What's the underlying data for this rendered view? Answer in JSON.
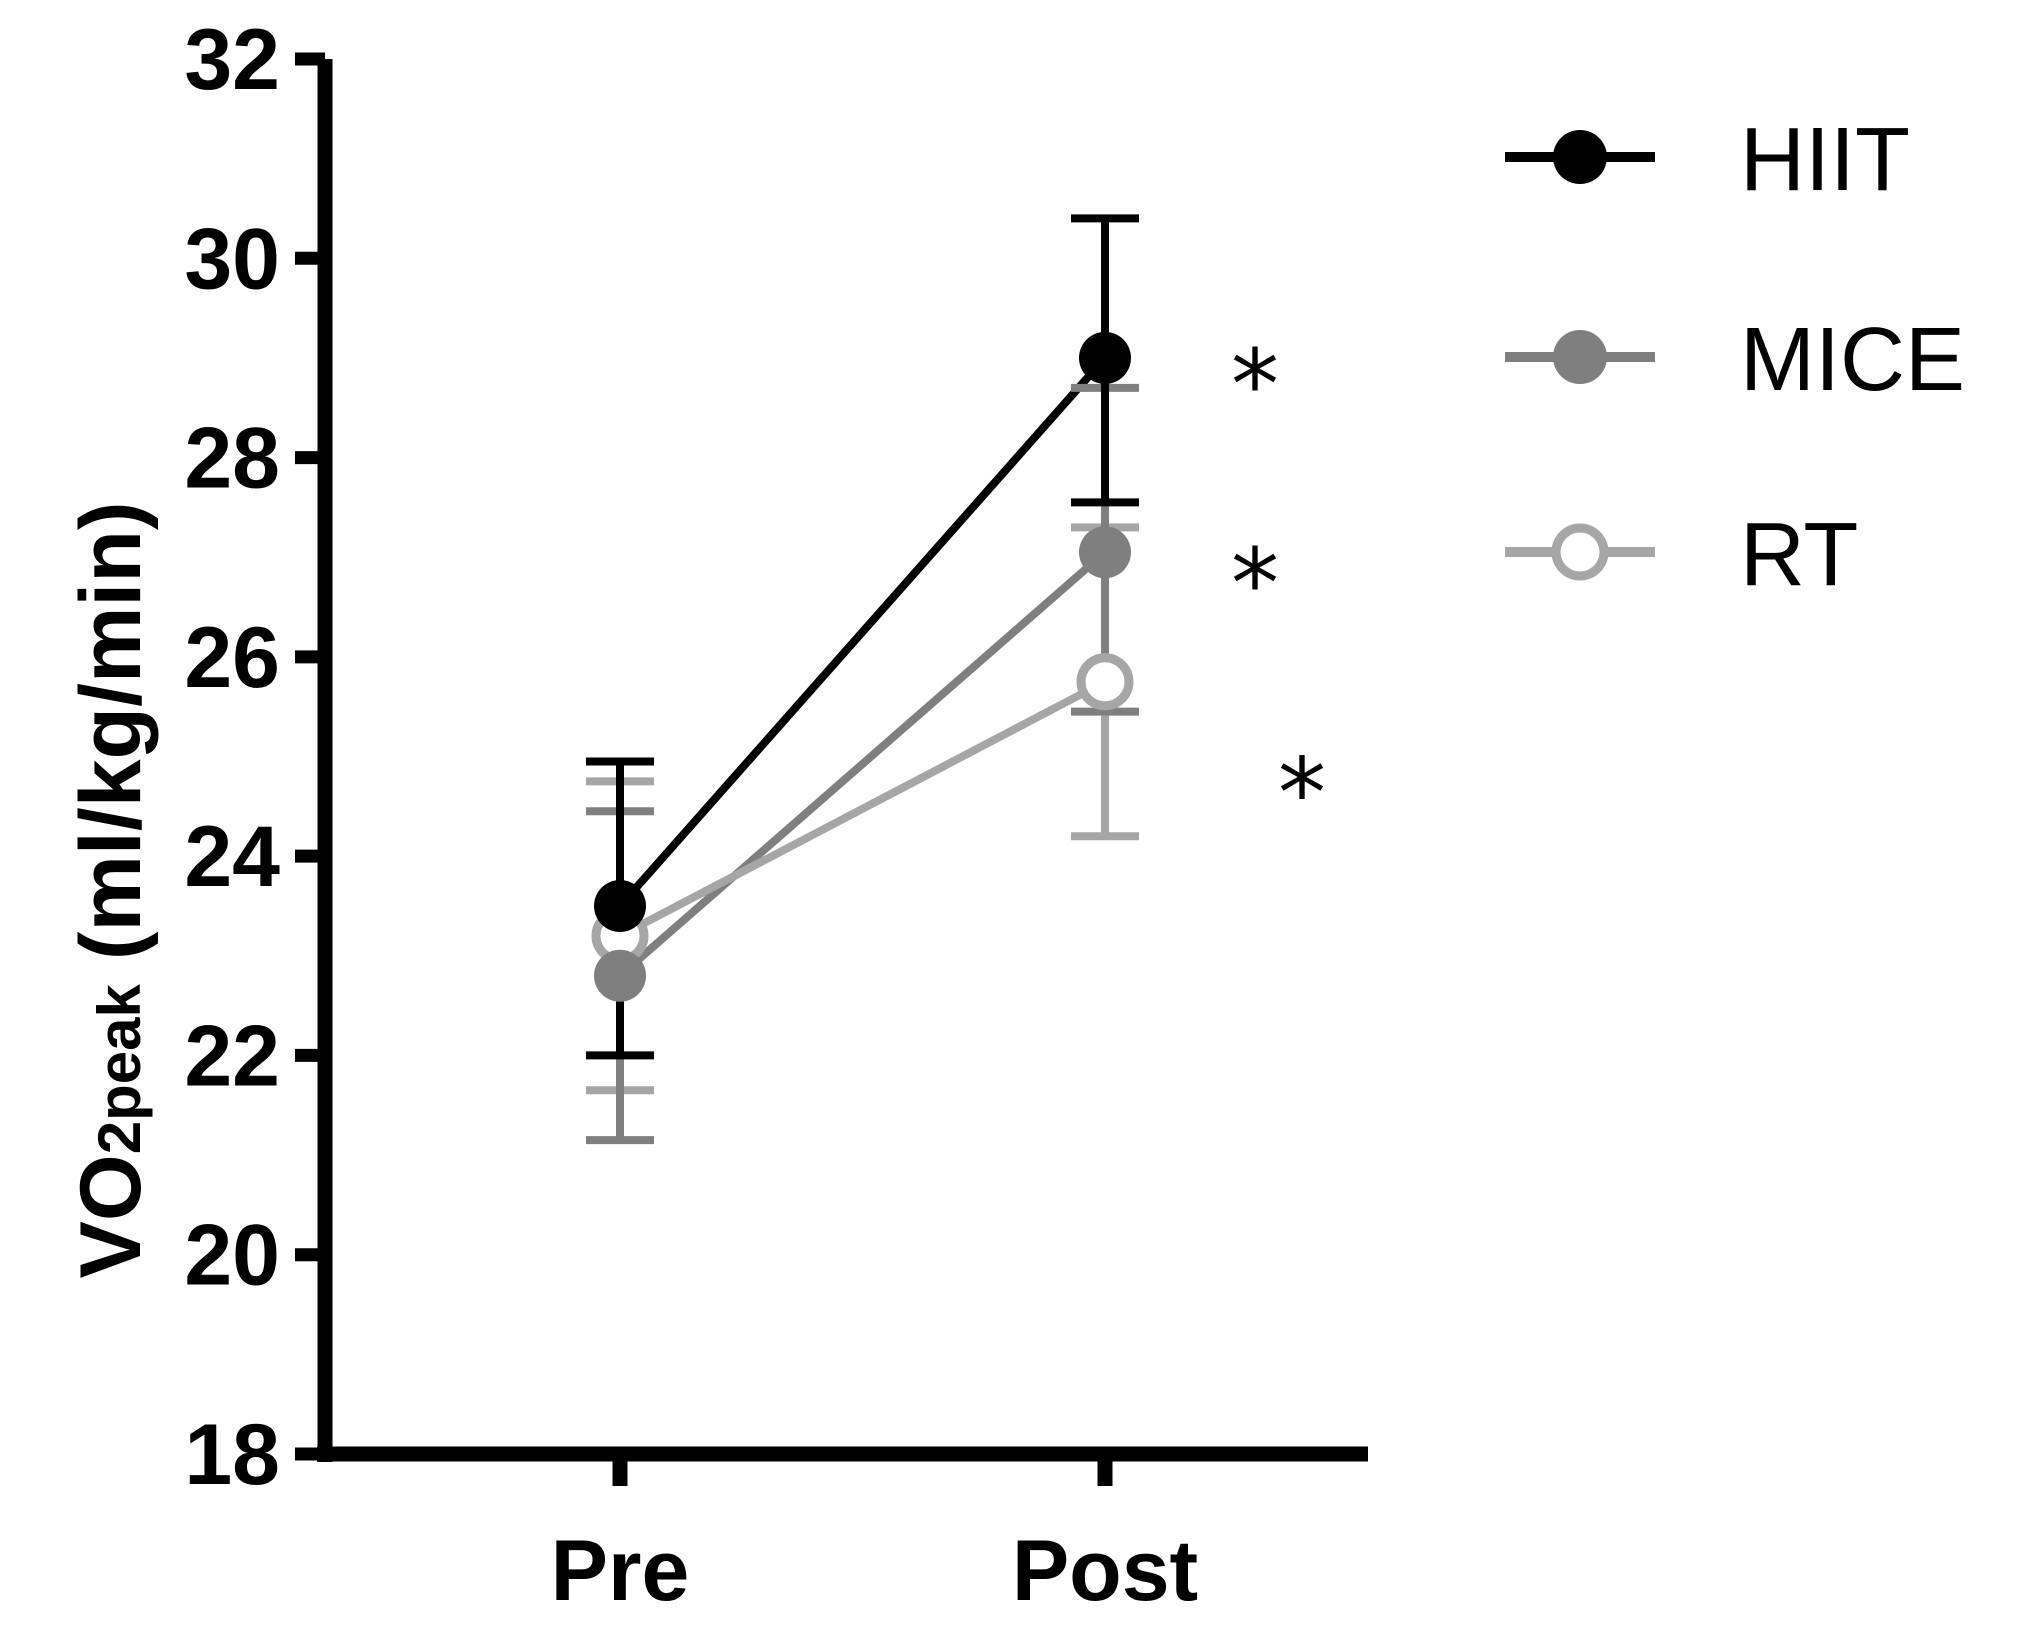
{
  "chart_data": {
    "type": "line",
    "categories": [
      "Pre",
      "Post"
    ],
    "ylabel": {
      "main": "VO",
      "sub": "2peak",
      "unit": " (ml/kg/min)"
    },
    "ylim": [
      18,
      32
    ],
    "yticks": [
      "18",
      "20",
      "22",
      "24",
      "26",
      "28",
      "30",
      "32"
    ],
    "grid": false,
    "legend_position": "top-right",
    "series": [
      {
        "name": "HIIT",
        "values": [
          23.5,
          29.0
        ],
        "error_upper": [
          24.95,
          30.4
        ],
        "error_lower": [
          22.0,
          27.55
        ],
        "color": "#000000",
        "marker": "filled-circle"
      },
      {
        "name": "MICE",
        "values": [
          22.8,
          27.05
        ],
        "error_upper": [
          24.45,
          28.7
        ],
        "error_lower": [
          21.15,
          25.45
        ],
        "color": "#7f7f7f",
        "marker": "filled-circle"
      },
      {
        "name": "RT",
        "values": [
          23.2,
          25.75
        ],
        "error_upper": [
          24.75,
          27.3
        ],
        "error_lower": [
          21.65,
          24.2
        ],
        "color": "#a6a6a6",
        "marker": "open-circle"
      }
    ],
    "annotations": [
      {
        "text": "*",
        "category": "Post",
        "y": 29.0
      },
      {
        "text": "*",
        "category": "Post",
        "y": 27.0
      },
      {
        "text": "*",
        "category": "Post",
        "y": 24.9
      }
    ]
  }
}
